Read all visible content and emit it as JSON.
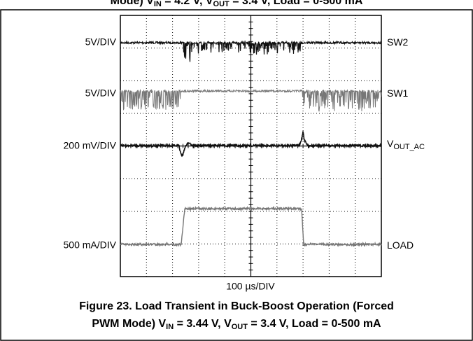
{
  "top_caption": [
    {
      "text": "Mode) V"
    },
    {
      "sub": "IN"
    },
    {
      "text": " = 4.2 V, V"
    },
    {
      "sub": "OUT"
    },
    {
      "text": " = 3.4 V, Load = 0-500 mA"
    }
  ],
  "scope": {
    "left_labels": [
      "5V/DIV",
      "5V/DIV",
      "200 mV/DIV",
      "500 mA/DIV"
    ],
    "right_labels": [
      [
        {
          "text": "SW2"
        }
      ],
      [
        {
          "text": "SW1"
        }
      ],
      [
        {
          "text": "V"
        },
        {
          "sub": "OUT_AC"
        }
      ],
      [
        {
          "text": "LOAD"
        }
      ]
    ],
    "time_scale": "100 µs/DIV"
  },
  "caption": [
    [
      {
        "text": "Figure 23. Load Transient in Buck-Boost Operation (Forced"
      }
    ],
    [
      {
        "text": "PWM Mode) V"
      },
      {
        "sub": "IN"
      },
      {
        "text": " = 3.44 V, V"
      },
      {
        "sub": "OUT"
      },
      {
        "text": " = 3.4 V, Load = 0-500 mA"
      }
    ]
  ]
}
